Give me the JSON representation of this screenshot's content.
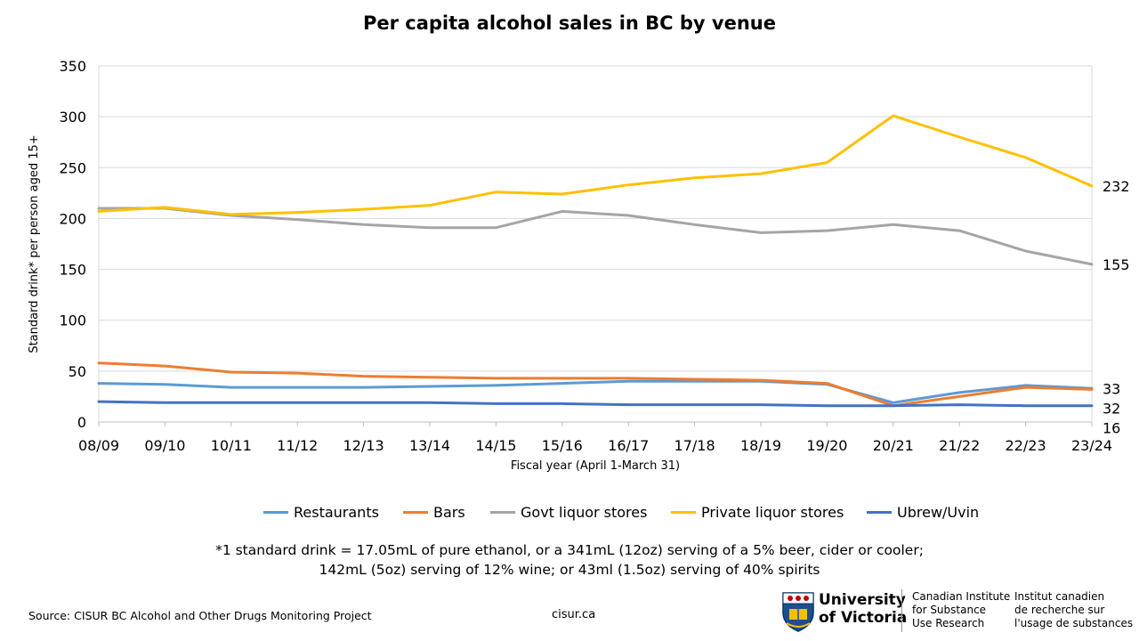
{
  "chart_data": {
    "type": "line",
    "title": "Per capita alcohol sales in BC by venue",
    "xlabel": "Fiscal year (April 1-March 31)",
    "ylabel": "Standard drink* per person aged 15+",
    "ylim": [
      0,
      350
    ],
    "yticks": [
      "0",
      "50",
      "100",
      "150",
      "200",
      "250",
      "300",
      "350"
    ],
    "categories": [
      "08/09",
      "09/10",
      "10/11",
      "11/12",
      "12/13",
      "13/14",
      "14/15",
      "15/16",
      "16/17",
      "17/18",
      "18/19",
      "19/20",
      "20/21",
      "21/22",
      "22/23",
      "23/24"
    ],
    "grid": true,
    "legend_position": "bottom",
    "series": [
      {
        "name": "Restaurants",
        "color": "#5B9BD5",
        "end_label": "33",
        "values": [
          38,
          37,
          34,
          34,
          34,
          35,
          36,
          38,
          40,
          40,
          40,
          37,
          19,
          29,
          36,
          33
        ]
      },
      {
        "name": "Bars",
        "color": "#ED7D31",
        "end_label": "32",
        "values": [
          58,
          55,
          49,
          48,
          45,
          44,
          43,
          43,
          43,
          42,
          41,
          38,
          16,
          25,
          34,
          32
        ]
      },
      {
        "name": "Govt liquor stores",
        "color": "#A5A5A5",
        "end_label": "155",
        "values": [
          210,
          210,
          203,
          199,
          194,
          191,
          191,
          207,
          203,
          194,
          186,
          188,
          194,
          188,
          168,
          155
        ]
      },
      {
        "name": "Private liquor stores",
        "color": "#FFC000",
        "end_label": "232",
        "values": [
          207,
          211,
          204,
          206,
          209,
          213,
          226,
          224,
          233,
          240,
          244,
          255,
          301,
          280,
          260,
          232
        ]
      },
      {
        "name": "Ubrew/Uvin",
        "color": "#4472C4",
        "end_label": "16",
        "values": [
          20,
          19,
          19,
          19,
          19,
          19,
          18,
          18,
          17,
          17,
          17,
          16,
          16,
          17,
          16,
          16
        ]
      }
    ]
  },
  "footnote": {
    "line1": "*1 standard drink = 17.05mL of pure ethanol, or a 341mL (12oz) serving of a 5% beer, cider or cooler;",
    "line2": "142mL (5oz) serving of 12% wine; or 43ml (1.5oz) serving of 40% spirits"
  },
  "source": "Source: CISUR BC Alcohol and Other Drugs Monitoring Project",
  "website": "cisur.ca",
  "logo": {
    "university_line1": "University",
    "university_line2": "of Victoria",
    "institute_en": [
      "Canadian Institute",
      "for Substance",
      "Use Research"
    ],
    "institute_fr": [
      "Institut canadien",
      "de recherche sur",
      "l'usage de substances"
    ]
  }
}
